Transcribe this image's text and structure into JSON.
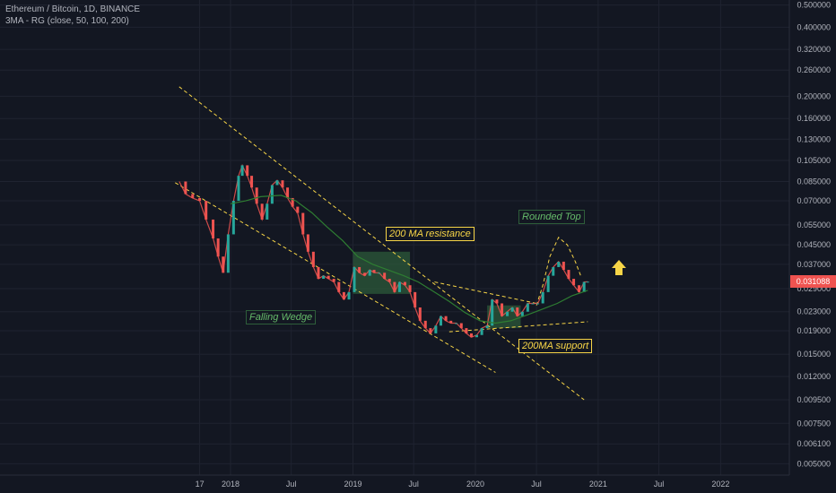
{
  "header": {
    "title": "Ethereum / Bitcoin, 1D, BINANCE",
    "indicator": "3MA - RG (close, 50, 100, 200)"
  },
  "colors": {
    "background": "#131722",
    "grid": "#1f2330",
    "up": "#26a69a",
    "down": "#ef5350",
    "ma": "#2e7d32",
    "trendline": "#f7d547",
    "price_tag": "#ef5350",
    "box": "#2e5e3a"
  },
  "annotations": {
    "falling_wedge": "Falling Wedge",
    "ma_resistance": "200 MA resistance",
    "ma_support": "200MA support",
    "rounded_top": "Rounded Top"
  },
  "last_price_label": "0.031088",
  "chart_data": {
    "type": "line",
    "title": "Ethereum / Bitcoin, 1D, BINANCE",
    "y_scale": "log",
    "y_ticks": [
      0.005,
      0.0061,
      0.0075,
      0.0095,
      0.012,
      0.015,
      0.019,
      0.023,
      0.029,
      0.037,
      0.045,
      0.055,
      0.07,
      0.085,
      0.105,
      0.13,
      0.16,
      0.2,
      0.26,
      0.32,
      0.4,
      0.5
    ],
    "y_tick_labels": [
      "0.005000",
      "0.006100",
      "0.007500",
      "0.009500",
      "0.012000",
      "0.015000",
      "0.019000",
      "0.023000",
      "0.029000",
      "0.037000",
      "0.045000",
      "0.055000",
      "0.070000",
      "0.085000",
      "0.105000",
      "0.130000",
      "0.160000",
      "0.200000",
      "0.260000",
      "0.320000",
      "0.400000",
      "0.500000"
    ],
    "x_ticks": [
      {
        "label": "17",
        "date": "2017-10-01"
      },
      {
        "label": "2018",
        "date": "2018-01-01"
      },
      {
        "label": "Jul",
        "date": "2018-07-01"
      },
      {
        "label": "2019",
        "date": "2019-01-01"
      },
      {
        "label": "Jul",
        "date": "2019-07-01"
      },
      {
        "label": "2020",
        "date": "2020-01-01"
      },
      {
        "label": "Jul",
        "date": "2020-07-01"
      },
      {
        "label": "2021",
        "date": "2021-01-01"
      },
      {
        "label": "Jul",
        "date": "2021-07-01"
      },
      {
        "label": "2022",
        "date": "2022-01-01"
      }
    ],
    "series": [
      {
        "name": "ETH/BTC",
        "points": [
          [
            "2017-08-01",
            0.085
          ],
          [
            "2017-08-20",
            0.075
          ],
          [
            "2017-09-10",
            0.072
          ],
          [
            "2017-10-01",
            0.07
          ],
          [
            "2017-10-20",
            0.058
          ],
          [
            "2017-11-10",
            0.048
          ],
          [
            "2017-11-25",
            0.04
          ],
          [
            "2017-12-10",
            0.034
          ],
          [
            "2017-12-25",
            0.05
          ],
          [
            "2018-01-10",
            0.07
          ],
          [
            "2018-01-25",
            0.09
          ],
          [
            "2018-02-05",
            0.1
          ],
          [
            "2018-02-20",
            0.09
          ],
          [
            "2018-03-05",
            0.08
          ],
          [
            "2018-03-20",
            0.068
          ],
          [
            "2018-04-05",
            0.058
          ],
          [
            "2018-04-20",
            0.068
          ],
          [
            "2018-05-05",
            0.082
          ],
          [
            "2018-05-20",
            0.086
          ],
          [
            "2018-06-05",
            0.08
          ],
          [
            "2018-06-20",
            0.072
          ],
          [
            "2018-07-05",
            0.066
          ],
          [
            "2018-07-20",
            0.062
          ],
          [
            "2018-08-05",
            0.05
          ],
          [
            "2018-08-20",
            0.042
          ],
          [
            "2018-09-05",
            0.036
          ],
          [
            "2018-09-20",
            0.032
          ],
          [
            "2018-10-05",
            0.033
          ],
          [
            "2018-10-20",
            0.032
          ],
          [
            "2018-11-05",
            0.031
          ],
          [
            "2018-11-20",
            0.028
          ],
          [
            "2018-12-05",
            0.026
          ],
          [
            "2018-12-20",
            0.028
          ],
          [
            "2019-01-05",
            0.036
          ],
          [
            "2019-01-20",
            0.034
          ],
          [
            "2019-02-05",
            0.033
          ],
          [
            "2019-02-20",
            0.035
          ],
          [
            "2019-03-05",
            0.034
          ],
          [
            "2019-03-20",
            0.034
          ],
          [
            "2019-04-05",
            0.032
          ],
          [
            "2019-04-20",
            0.031
          ],
          [
            "2019-05-05",
            0.028
          ],
          [
            "2019-05-20",
            0.031
          ],
          [
            "2019-06-05",
            0.03
          ],
          [
            "2019-06-20",
            0.028
          ],
          [
            "2019-07-05",
            0.024
          ],
          [
            "2019-07-20",
            0.021
          ],
          [
            "2019-08-05",
            0.0195
          ],
          [
            "2019-08-20",
            0.0185
          ],
          [
            "2019-09-05",
            0.02
          ],
          [
            "2019-09-20",
            0.022
          ],
          [
            "2019-10-05",
            0.021
          ],
          [
            "2019-10-20",
            0.0205
          ],
          [
            "2019-11-05",
            0.0205
          ],
          [
            "2019-11-20",
            0.0195
          ],
          [
            "2019-12-05",
            0.0185
          ],
          [
            "2019-12-20",
            0.0178
          ],
          [
            "2020-01-05",
            0.0182
          ],
          [
            "2020-01-20",
            0.0195
          ],
          [
            "2020-02-05",
            0.02
          ],
          [
            "2020-02-20",
            0.026
          ],
          [
            "2020-03-05",
            0.025
          ],
          [
            "2020-03-20",
            0.022
          ],
          [
            "2020-04-05",
            0.023
          ],
          [
            "2020-04-20",
            0.024
          ],
          [
            "2020-05-05",
            0.022
          ],
          [
            "2020-05-20",
            0.023
          ],
          [
            "2020-06-05",
            0.025
          ],
          [
            "2020-06-20",
            0.025
          ],
          [
            "2020-07-05",
            0.025
          ],
          [
            "2020-07-20",
            0.028
          ],
          [
            "2020-08-05",
            0.033
          ],
          [
            "2020-08-20",
            0.036
          ],
          [
            "2020-09-05",
            0.038
          ],
          [
            "2020-09-20",
            0.035
          ],
          [
            "2020-10-05",
            0.032
          ],
          [
            "2020-10-20",
            0.03
          ],
          [
            "2020-11-05",
            0.028
          ],
          [
            "2020-11-20",
            0.031
          ],
          [
            "2020-12-01",
            0.031088
          ]
        ]
      },
      {
        "name": "MA 200",
        "points": [
          [
            "2018-01-01",
            0.068
          ],
          [
            "2018-02-15",
            0.07
          ],
          [
            "2018-04-01",
            0.073
          ],
          [
            "2018-06-01",
            0.074
          ],
          [
            "2018-07-15",
            0.07
          ],
          [
            "2018-09-01",
            0.062
          ],
          [
            "2018-10-15",
            0.054
          ],
          [
            "2018-12-01",
            0.047
          ],
          [
            "2019-01-15",
            0.04
          ],
          [
            "2019-03-01",
            0.037
          ],
          [
            "2019-04-15",
            0.035
          ],
          [
            "2019-06-01",
            0.033
          ],
          [
            "2019-07-15",
            0.031
          ],
          [
            "2019-09-01",
            0.028
          ],
          [
            "2019-10-15",
            0.0255
          ],
          [
            "2019-12-01",
            0.0228
          ],
          [
            "2020-01-15",
            0.021
          ],
          [
            "2020-03-01",
            0.0205
          ],
          [
            "2020-04-15",
            0.021
          ],
          [
            "2020-06-01",
            0.0222
          ],
          [
            "2020-07-15",
            0.0235
          ],
          [
            "2020-09-01",
            0.025
          ],
          [
            "2020-10-15",
            0.027
          ],
          [
            "2020-12-01",
            0.0285
          ]
        ]
      }
    ],
    "trendlines": [
      {
        "name": "wedge-upper",
        "points": [
          [
            "2017-08-01",
            0.22
          ],
          [
            "2020-11-20",
            0.0095
          ]
        ]
      },
      {
        "name": "wedge-lower",
        "points": [
          [
            "2017-07-20",
            0.084
          ],
          [
            "2020-03-01",
            0.0125
          ]
        ]
      },
      {
        "name": "triangle-upper",
        "points": [
          [
            "2019-09-01",
            0.031
          ],
          [
            "2020-07-01",
            0.025
          ]
        ]
      },
      {
        "name": "triangle-lower",
        "points": [
          [
            "2019-10-15",
            0.0188
          ],
          [
            "2020-12-01",
            0.0208
          ]
        ]
      }
    ],
    "rounded_top": [
      [
        "2020-07-01",
        0.0245
      ],
      [
        "2020-07-20",
        0.03
      ],
      [
        "2020-08-10",
        0.04
      ],
      [
        "2020-09-05",
        0.0485
      ],
      [
        "2020-10-01",
        0.045
      ],
      [
        "2020-10-25",
        0.038
      ],
      [
        "2020-11-10",
        0.033
      ]
    ],
    "boxes": [
      {
        "name": "ma-resistance-zone",
        "x": [
          "2019-01-01",
          "2019-06-20"
        ],
        "y": [
          0.0275,
          0.042
        ]
      },
      {
        "name": "ma-support-zone",
        "x": [
          "2020-02-05",
          "2020-05-15"
        ],
        "y": [
          0.0195,
          0.0245
        ]
      }
    ],
    "last_price": 0.031088,
    "legend": "none"
  }
}
